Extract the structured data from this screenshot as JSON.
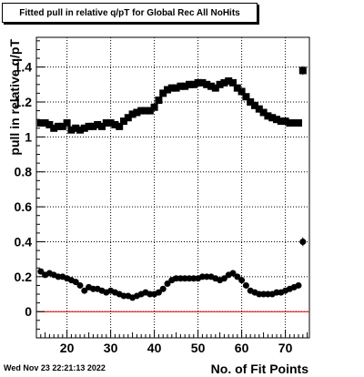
{
  "chart_data": {
    "type": "scatter",
    "title": "Fitted pull in relative q/pT for Global Rec All NoHits",
    "xlabel": "No. of Fit Points",
    "ylabel": "pull in relative q/pT",
    "xlim": [
      13,
      75.5
    ],
    "ylim": [
      -0.15,
      1.57
    ],
    "xticks": [
      20,
      30,
      40,
      50,
      60,
      70
    ],
    "yticks": [
      0,
      0.2,
      0.4,
      0.6,
      0.8,
      1,
      1.2,
      1.4
    ],
    "xtick_labels": [
      "20",
      "30",
      "40",
      "50",
      "60",
      "70"
    ],
    "ytick_labels": [
      "0",
      "0.2",
      "0.4",
      "0.6",
      "0.8",
      "1",
      "1.2",
      "1.4"
    ],
    "grid": true,
    "reference_line": {
      "y": 0,
      "color": "#e00000"
    },
    "series": [
      {
        "marker": "square",
        "x": [
          14,
          15,
          16,
          17,
          18,
          19,
          20,
          21,
          22,
          23,
          24,
          25,
          26,
          27,
          28,
          29,
          30,
          31,
          32,
          33,
          34,
          35,
          36,
          37,
          38,
          39,
          40,
          41,
          42,
          43,
          44,
          45,
          46,
          47,
          48,
          49,
          50,
          51,
          52,
          53,
          54,
          55,
          56,
          57,
          58,
          59,
          60,
          61,
          62,
          63,
          64,
          65,
          66,
          67,
          68,
          69,
          70,
          71,
          72,
          73,
          74
        ],
        "y": [
          1.08,
          1.08,
          1.07,
          1.05,
          1.06,
          1.06,
          1.08,
          1.04,
          1.05,
          1.04,
          1.05,
          1.06,
          1.06,
          1.07,
          1.06,
          1.08,
          1.08,
          1.07,
          1.06,
          1.09,
          1.11,
          1.13,
          1.14,
          1.15,
          1.15,
          1.15,
          1.17,
          1.21,
          1.25,
          1.27,
          1.28,
          1.28,
          1.29,
          1.29,
          1.3,
          1.3,
          1.31,
          1.31,
          1.3,
          1.29,
          1.28,
          1.3,
          1.31,
          1.32,
          1.31,
          1.28,
          1.26,
          1.23,
          1.2,
          1.18,
          1.16,
          1.14,
          1.12,
          1.11,
          1.1,
          1.09,
          1.09,
          1.08,
          1.08,
          1.08,
          1.38
        ]
      },
      {
        "marker": "circle",
        "x": [
          14,
          15,
          16,
          17,
          18,
          19,
          20,
          21,
          22,
          23,
          24,
          25,
          26,
          27,
          28,
          29,
          30,
          31,
          32,
          33,
          34,
          35,
          36,
          37,
          38,
          39,
          40,
          41,
          42,
          43,
          44,
          45,
          46,
          47,
          48,
          49,
          50,
          51,
          52,
          53,
          54,
          55,
          56,
          57,
          58,
          59,
          60,
          61,
          62,
          63,
          64,
          65,
          66,
          67,
          68,
          69,
          70,
          71,
          72,
          73,
          74
        ],
        "y": [
          0.23,
          0.21,
          0.22,
          0.21,
          0.2,
          0.2,
          0.19,
          0.18,
          0.17,
          0.15,
          0.12,
          0.14,
          0.13,
          0.13,
          0.12,
          0.11,
          0.12,
          0.11,
          0.1,
          0.09,
          0.09,
          0.08,
          0.09,
          0.1,
          0.11,
          0.1,
          0.1,
          0.11,
          0.13,
          0.16,
          0.18,
          0.19,
          0.19,
          0.19,
          0.19,
          0.19,
          0.19,
          0.2,
          0.2,
          0.2,
          0.19,
          0.18,
          0.19,
          0.21,
          0.22,
          0.2,
          0.18,
          0.15,
          0.12,
          0.11,
          0.1,
          0.1,
          0.1,
          0.1,
          0.11,
          0.11,
          0.12,
          0.13,
          0.14,
          0.15,
          0.4
        ],
        "errors": {
          "74": 0.025
        }
      }
    ],
    "last_point_error": {
      "square": 0.025,
      "circle": 0.025
    },
    "timestamp": "Wed Nov 23 22:21:13 2022"
  }
}
